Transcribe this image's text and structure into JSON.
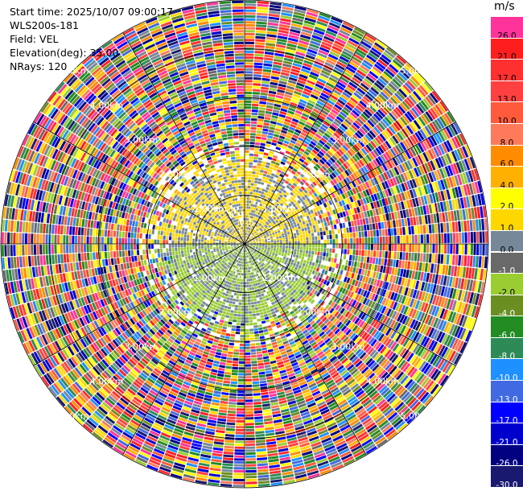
{
  "info": {
    "start_time": "Start time: 2025/10/07 09:00:17",
    "instrument": "WLS200s-181",
    "field": "Field: VEL",
    "elevation": "Elevation(deg): 35.00",
    "nrays": "NRays: 120"
  },
  "colorbar": {
    "unit": "m/s",
    "segments": [
      {
        "label": "26.0",
        "color": "#ff3399"
      },
      {
        "label": "21.0",
        "color": "#ff1e1e"
      },
      {
        "label": "17.0",
        "color": "#ff3030"
      },
      {
        "label": "13.0",
        "color": "#ff4040"
      },
      {
        "label": "10.0",
        "color": "#ff5a3c"
      },
      {
        "label": "8.0",
        "color": "#ff7a5a"
      },
      {
        "label": "6.0",
        "color": "#ff8c00"
      },
      {
        "label": "4.0",
        "color": "#ffb000"
      },
      {
        "label": "2.0",
        "color": "#ffff00"
      },
      {
        "label": "1.0",
        "color": "#ffd700"
      },
      {
        "label": "0.0",
        "color": "#778899"
      },
      {
        "label": "-1.0",
        "color": "#696969"
      },
      {
        "label": "-2.0",
        "color": "#9acd32"
      },
      {
        "label": "-4.0",
        "color": "#6b8e23"
      },
      {
        "label": "-6.0",
        "color": "#228b22"
      },
      {
        "label": "-8.0",
        "color": "#2e8b57"
      },
      {
        "label": "-10.0",
        "color": "#1e90ff"
      },
      {
        "label": "-13.0",
        "color": "#4169e1"
      },
      {
        "label": "-17.0",
        "color": "#0000ff"
      },
      {
        "label": "-21.0",
        "color": "#0000cd"
      },
      {
        "label": "-26.0",
        "color": "#000080"
      },
      {
        "label": "-30.0",
        "color": "#191970"
      }
    ]
  },
  "chart_data": {
    "type": "heatmap",
    "projection": "polar PPI",
    "field": "VEL",
    "unit": "m/s",
    "nrays": 120,
    "elevation_deg": 35.0,
    "range_rings_km": [
      1.0,
      2.0,
      3.0,
      4.0,
      5.0
    ],
    "range_labels": [
      "1.00km",
      "2.00km",
      "3.00km",
      "4.00km",
      "5.00km"
    ],
    "spokes_deg": [
      0,
      30,
      60,
      90,
      120,
      150,
      180,
      210,
      240,
      270,
      300,
      330
    ],
    "max_range_km": 5.0,
    "color_levels": [
      26.0,
      21.0,
      17.0,
      13.0,
      10.0,
      8.0,
      6.0,
      4.0,
      2.0,
      1.0,
      0.0,
      -1.0,
      -2.0,
      -4.0,
      -6.0,
      -8.0,
      -10.0,
      -13.0,
      -17.0,
      -21.0,
      -26.0,
      -30.0
    ],
    "near_field": {
      "north_values_ms": [
        1.0,
        0.0
      ],
      "south_values_ms": [
        -2.0,
        0.0
      ],
      "radius_km": 1.75
    },
    "far_field": "noise across full color range"
  }
}
